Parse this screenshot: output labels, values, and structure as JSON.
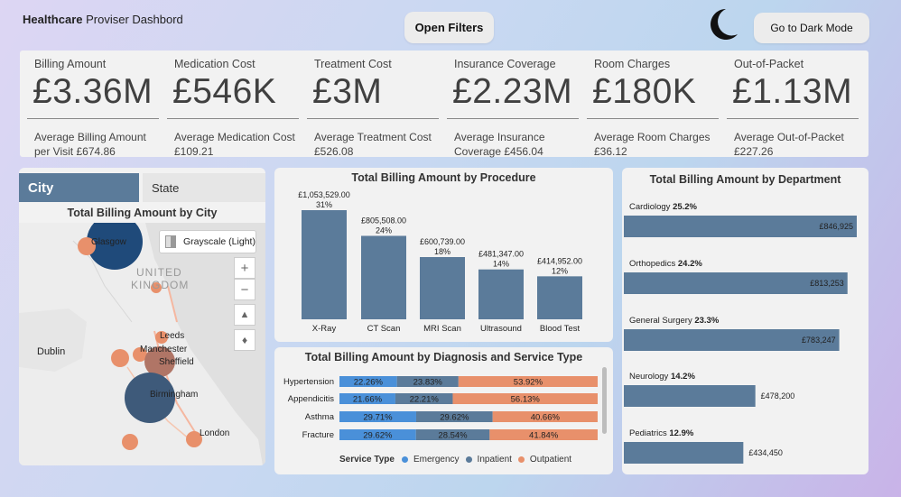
{
  "header": {
    "title_bold": "Healthcare",
    "title_rest": " Proviser Dashbord",
    "open_filters": "Open Filters",
    "dark_mode": "Go to Dark Mode"
  },
  "kpis": [
    {
      "label": "Billing Amount",
      "value": "£3.36M",
      "sub": "Average Billing Amount per Visit £674.86"
    },
    {
      "label": "Medication Cost",
      "value": "£546K",
      "sub": "Average Medication Cost £109.21"
    },
    {
      "label": "Treatment Cost",
      "value": "£3M",
      "sub": "Average Treatment Cost £526.08"
    },
    {
      "label": "Insurance Coverage",
      "value": "£2.23M",
      "sub": "Average Insurance Coverage £456.04"
    },
    {
      "label": "Room Charges",
      "value": "£180K",
      "sub": "Average Room Charges £36.12"
    },
    {
      "label": "Out-of-Packet",
      "value": "£1.13M",
      "sub": "Average Out-of-Packet £227.26"
    }
  ],
  "map": {
    "tab_city": "City",
    "tab_state": "State",
    "title": "Total Billing Amount by City",
    "grayscale_label": "Grayscale (Light)",
    "places": [
      "Glasgow",
      "UNITED",
      "KINGDOM",
      "Leeds",
      "Manchester",
      "Sheffield",
      "Dublin",
      "Birmingham",
      "London"
    ]
  },
  "colors": {
    "bar": "#5b7b9a",
    "emergency": "#4a90d9",
    "inpatient": "#5b7b9a",
    "outpatient": "#e8906b",
    "city_dark": "#1f4a7a",
    "city_brown": "#b07566"
  },
  "chart_data": [
    {
      "type": "bar",
      "title": "Total Billing Amount by Procedure",
      "categories": [
        "X-Ray",
        "CT Scan",
        "MRI Scan",
        "Ultrasound",
        "Blood Test"
      ],
      "values": [
        1053529.0,
        805508.0,
        600739.0,
        481347.0,
        414952.0
      ],
      "value_labels": [
        "£1,053,529.00",
        "£805,508.00",
        "£600,739.00",
        "£481,347.00",
        "£414,952.00"
      ],
      "percent_labels": [
        "31%",
        "24%",
        "18%",
        "14%",
        "12%"
      ]
    },
    {
      "type": "bar",
      "title": "Total Billing Amount by Diagnosis and Service Type",
      "categories": [
        "Hypertension",
        "Appendicitis",
        "Asthma",
        "Fracture"
      ],
      "series": [
        {
          "name": "Emergency",
          "values": [
            22.26,
            21.66,
            29.71,
            29.62
          ]
        },
        {
          "name": "Inpatient",
          "values": [
            23.83,
            22.21,
            29.62,
            28.54
          ]
        },
        {
          "name": "Outpatient",
          "values": [
            53.92,
            56.13,
            40.66,
            41.84
          ]
        }
      ],
      "legend_title": "Service Type"
    },
    {
      "type": "bar",
      "title": "Total Billing Amount by Department",
      "categories": [
        "Cardiology",
        "Orthopedics",
        "General Surgery",
        "Neurology",
        "Pediatrics"
      ],
      "percents": [
        "25.2%",
        "24.2%",
        "23.3%",
        "14.2%",
        "12.9%"
      ],
      "values": [
        846925,
        813253,
        783247,
        478200,
        434450
      ],
      "value_labels": [
        "£846,925",
        "£813,253",
        "£783,247",
        "£478,200",
        "£434,450"
      ]
    }
  ]
}
